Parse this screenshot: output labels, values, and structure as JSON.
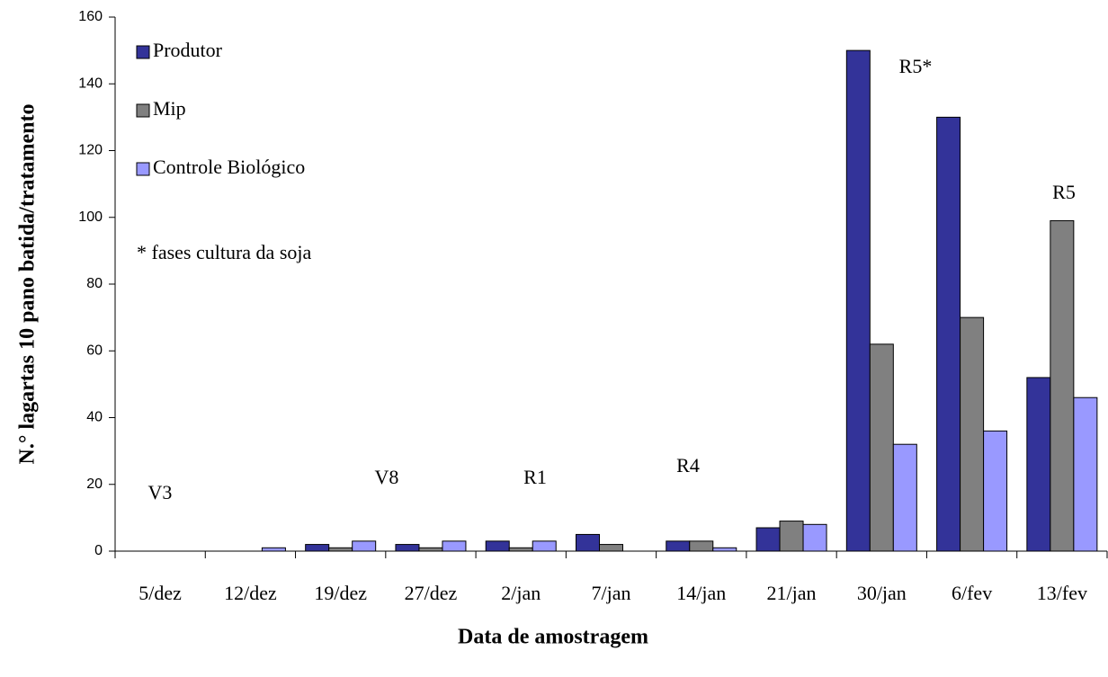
{
  "chart_data": {
    "type": "bar",
    "y_label": "N.° lagartas 10 pano batida/tratamento",
    "x_label": "Data de amostragem",
    "categories": [
      "5/dez",
      "12/dez",
      "19/dez",
      "27/dez",
      "2/jan",
      "7/jan",
      "14/jan",
      "21/jan",
      "30/jan",
      "6/fev",
      "13/fev"
    ],
    "series": [
      {
        "name": "Produtor",
        "color": "#333399",
        "values": [
          0,
          0,
          2,
          2,
          3,
          5,
          3,
          7,
          150,
          130,
          52
        ]
      },
      {
        "name": "Mip",
        "color": "#808080",
        "values": [
          0,
          0,
          1,
          1,
          1,
          2,
          3,
          9,
          62,
          70,
          99
        ]
      },
      {
        "name": "Controle Biológico",
        "color": "#9999ff",
        "values": [
          0,
          1,
          3,
          3,
          3,
          0,
          1,
          8,
          32,
          36,
          46
        ]
      }
    ],
    "note": "* fases cultura da soja",
    "annotations": [
      "V3",
      "V8",
      "R1",
      "R4",
      "R5*",
      "R5"
    ],
    "ylim": [
      0,
      160
    ],
    "yticks": [
      0,
      20,
      40,
      60,
      80,
      100,
      120,
      140,
      160
    ],
    "grid": false,
    "legend": "upper left"
  }
}
